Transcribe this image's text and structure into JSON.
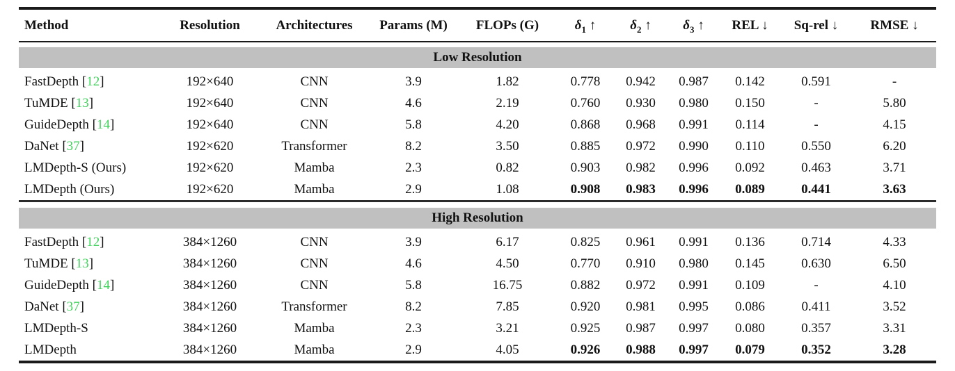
{
  "colors": {
    "accent_green": "#43d15e",
    "band_gray": "#c0c0c0",
    "rule_black": "#1a1a1a",
    "text": "#111111"
  },
  "table": {
    "columns": [
      {
        "key": "method",
        "label": "Method"
      },
      {
        "key": "resolution",
        "label": "Resolution"
      },
      {
        "key": "architectures",
        "label": "Architectures"
      },
      {
        "key": "params",
        "label": "Params (M)"
      },
      {
        "key": "flops",
        "label": "FLOPs (G)"
      },
      {
        "key": "delta1",
        "base": "δ",
        "sub": "1",
        "arrow": "↑"
      },
      {
        "key": "delta2",
        "base": "δ",
        "sub": "2",
        "arrow": "↑"
      },
      {
        "key": "delta3",
        "base": "δ",
        "sub": "3",
        "arrow": "↑"
      },
      {
        "key": "rel",
        "label": "REL",
        "arrow": "↓"
      },
      {
        "key": "sqrel",
        "label": "Sq-rel",
        "arrow": "↓"
      },
      {
        "key": "rmse",
        "label": "RMSE",
        "arrow": "↓"
      }
    ],
    "sections": [
      {
        "title": "Low Resolution",
        "rows": [
          {
            "method": "FastDepth",
            "ref": "12",
            "cells": [
              "192×640",
              "CNN",
              "3.9",
              "1.82",
              "0.778",
              "0.942",
              "0.987",
              "0.142",
              "0.591",
              "-"
            ],
            "bold_metrics": false
          },
          {
            "method": "TuMDE",
            "ref": "13",
            "cells": [
              "192×640",
              "CNN",
              "4.6",
              "2.19",
              "0.760",
              "0.930",
              "0.980",
              "0.150",
              "-",
              "5.80"
            ],
            "bold_metrics": false
          },
          {
            "method": "GuideDepth",
            "ref": "14",
            "cells": [
              "192×640",
              "CNN",
              "5.8",
              "4.20",
              "0.868",
              "0.968",
              "0.991",
              "0.114",
              "-",
              "4.15"
            ],
            "bold_metrics": false
          },
          {
            "method": "DaNet",
            "ref": "37",
            "cells": [
              "192×620",
              "Transformer",
              "8.2",
              "3.50",
              "0.885",
              "0.972",
              "0.990",
              "0.110",
              "0.550",
              "6.20"
            ],
            "bold_metrics": false
          },
          {
            "method": "LMDepth-S (Ours)",
            "ref": null,
            "cells": [
              "192×620",
              "Mamba",
              "2.3",
              "0.82",
              "0.903",
              "0.982",
              "0.996",
              "0.092",
              "0.463",
              "3.71"
            ],
            "bold_metrics": false
          },
          {
            "method": "LMDepth (Ours)",
            "ref": null,
            "cells": [
              "192×620",
              "Mamba",
              "2.9",
              "1.08",
              "0.908",
              "0.983",
              "0.996",
              "0.089",
              "0.441",
              "3.63"
            ],
            "bold_metrics": true
          }
        ]
      },
      {
        "title": "High Resolution",
        "rows": [
          {
            "method": "FastDepth",
            "ref": "12",
            "cells": [
              "384×1260",
              "CNN",
              "3.9",
              "6.17",
              "0.825",
              "0.961",
              "0.991",
              "0.136",
              "0.714",
              "4.33"
            ],
            "bold_metrics": false
          },
          {
            "method": "TuMDE",
            "ref": "13",
            "cells": [
              "384×1260",
              "CNN",
              "4.6",
              "4.50",
              "0.770",
              "0.910",
              "0.980",
              "0.145",
              "0.630",
              "6.50"
            ],
            "bold_metrics": false
          },
          {
            "method": "GuideDepth",
            "ref": "14",
            "cells": [
              "384×1260",
              "CNN",
              "5.8",
              "16.75",
              "0.882",
              "0.972",
              "0.991",
              "0.109",
              "-",
              "4.10"
            ],
            "bold_metrics": false
          },
          {
            "method": "DaNet",
            "ref": "37",
            "cells": [
              "384×1260",
              "Transformer",
              "8.2",
              "7.85",
              "0.920",
              "0.981",
              "0.995",
              "0.086",
              "0.411",
              "3.52"
            ],
            "bold_metrics": false
          },
          {
            "method": "LMDepth-S",
            "ref": null,
            "cells": [
              "384×1260",
              "Mamba",
              "2.3",
              "3.21",
              "0.925",
              "0.987",
              "0.997",
              "0.080",
              "0.357",
              "3.31"
            ],
            "bold_metrics": false
          },
          {
            "method": "LMDepth",
            "ref": null,
            "cells": [
              "384×1260",
              "Mamba",
              "2.9",
              "4.05",
              "0.926",
              "0.988",
              "0.997",
              "0.079",
              "0.352",
              "3.28"
            ],
            "bold_metrics": true
          }
        ]
      }
    ]
  }
}
